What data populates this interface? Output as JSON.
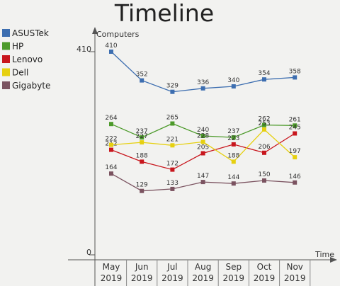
{
  "chart_data": {
    "type": "line",
    "title": "Timeline",
    "xlabel": "Time",
    "ylabel": "Computers",
    "ylim": [
      0,
      470
    ],
    "y_ticks": [
      "0",
      "410"
    ],
    "categories": [
      [
        "May",
        "2019"
      ],
      [
        "Jun",
        "2019"
      ],
      [
        "Jul",
        "2019"
      ],
      [
        "Aug",
        "2019"
      ],
      [
        "Sep",
        "2019"
      ],
      [
        "Oct",
        "2019"
      ],
      [
        "Nov",
        "2019"
      ]
    ],
    "legend_position": "left",
    "grid": false,
    "series": [
      {
        "name": "ASUSTek",
        "color": "#3d6eb0",
        "values": [
          410,
          352,
          329,
          336,
          340,
          354,
          358
        ]
      },
      {
        "name": "HP",
        "color": "#4c9a2a",
        "values": [
          264,
          237,
          265,
          240,
          237,
          262,
          261
        ]
      },
      {
        "name": "Lenovo",
        "color": "#c8161d",
        "values": [
          212,
          188,
          172,
          205,
          223,
          206,
          245
        ]
      },
      {
        "name": "Dell",
        "color": "#e6d00f",
        "values": [
          222,
          227,
          221,
          228,
          188,
          253,
          197
        ]
      },
      {
        "name": "Gigabyte",
        "color": "#7b5360",
        "values": [
          164,
          129,
          133,
          147,
          144,
          150,
          146
        ]
      }
    ]
  }
}
